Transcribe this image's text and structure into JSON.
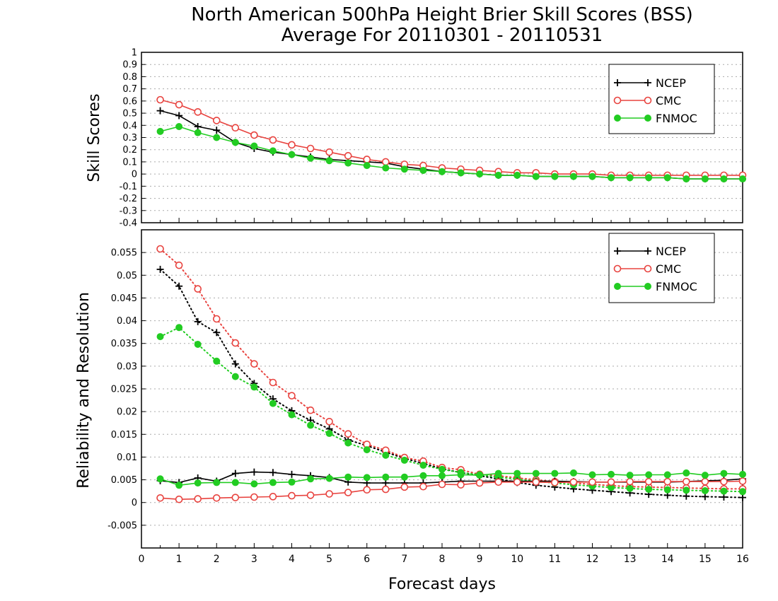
{
  "title_line1": "North American 500hPa Height Brier Skill Scores (BSS)",
  "title_line2": "Average For 20110301 - 20110531",
  "xlabel": "Forecast days",
  "colors": {
    "NCEP": "#000000",
    "CMC": "#e8433f",
    "FNMOC": "#22cc22"
  },
  "chart_data": [
    {
      "type": "line",
      "ylabel": "Skill Scores",
      "xlim": [
        0,
        16
      ],
      "ylim": [
        -0.4,
        1
      ],
      "yticks": [
        "-0.4",
        "-0.3",
        "-0.2",
        "-0.1",
        "0",
        "0.1",
        "0.2",
        "0.3",
        "0.4",
        "0.5",
        "0.6",
        "0.7",
        "0.8",
        "0.9",
        "1"
      ],
      "x": [
        0.5,
        1,
        1.5,
        2,
        2.5,
        3,
        3.5,
        4,
        4.5,
        5,
        5.5,
        6,
        6.5,
        7,
        7.5,
        8,
        8.5,
        9,
        9.5,
        10,
        10.5,
        11,
        11.5,
        12,
        12.5,
        13,
        13.5,
        14,
        14.5,
        15,
        15.5,
        16
      ],
      "legend": [
        "NCEP",
        "CMC",
        "FNMOC"
      ],
      "series": [
        {
          "name": "NCEP",
          "marker": "plus",
          "dotted": false,
          "values": [
            0.52,
            0.48,
            0.39,
            0.36,
            0.26,
            0.21,
            0.18,
            0.16,
            0.14,
            0.12,
            0.11,
            0.1,
            0.09,
            0.06,
            0.04,
            0.02,
            0.01,
            0,
            -0.01,
            -0.01,
            -0.02,
            -0.02,
            -0.02,
            -0.02,
            -0.03,
            -0.03,
            -0.03,
            -0.03,
            -0.04,
            -0.04,
            -0.04,
            -0.04
          ]
        },
        {
          "name": "CMC",
          "marker": "circle",
          "dotted": false,
          "values": [
            0.61,
            0.57,
            0.51,
            0.44,
            0.38,
            0.32,
            0.28,
            0.24,
            0.21,
            0.18,
            0.15,
            0.12,
            0.1,
            0.08,
            0.07,
            0.05,
            0.04,
            0.03,
            0.02,
            0.01,
            0.01,
            0,
            0,
            0,
            -0.01,
            -0.01,
            -0.01,
            -0.01,
            -0.01,
            -0.01,
            -0.01,
            -0.01
          ]
        },
        {
          "name": "FNMOC",
          "marker": "dot",
          "dotted": false,
          "values": [
            0.35,
            0.39,
            0.34,
            0.3,
            0.26,
            0.23,
            0.19,
            0.16,
            0.13,
            0.11,
            0.09,
            0.07,
            0.05,
            0.04,
            0.03,
            0.02,
            0.01,
            0,
            -0.01,
            -0.01,
            -0.02,
            -0.02,
            -0.02,
            -0.02,
            -0.03,
            -0.03,
            -0.03,
            -0.03,
            -0.04,
            -0.04,
            -0.04,
            -0.04
          ]
        }
      ]
    },
    {
      "type": "line",
      "ylabel": "Reliability and Resolution",
      "xlim": [
        0,
        16
      ],
      "ylim": [
        -0.01,
        0.06
      ],
      "yticks": [
        "-0.005",
        "0",
        "0.005",
        "0.01",
        "0.015",
        "0.02",
        "0.025",
        "0.03",
        "0.035",
        "0.04",
        "0.045",
        "0.05",
        "0.055"
      ],
      "xticks": [
        "0",
        "1",
        "2",
        "3",
        "4",
        "5",
        "6",
        "7",
        "8",
        "9",
        "10",
        "11",
        "12",
        "13",
        "14",
        "15",
        "16"
      ],
      "x": [
        0.5,
        1,
        1.5,
        2,
        2.5,
        3,
        3.5,
        4,
        4.5,
        5,
        5.5,
        6,
        6.5,
        7,
        7.5,
        8,
        8.5,
        9,
        9.5,
        10,
        10.5,
        11,
        11.5,
        12,
        12.5,
        13,
        13.5,
        14,
        14.5,
        15,
        15.5,
        16
      ],
      "legend": [
        "NCEP",
        "CMC",
        "FNMOC"
      ],
      "series": [
        {
          "name": "NCEP",
          "marker": "plus",
          "dotted": true,
          "values": [
            0.0513,
            0.0476,
            0.0398,
            0.0374,
            0.0305,
            0.0262,
            0.0228,
            0.0202,
            0.0181,
            0.0162,
            0.0138,
            0.0125,
            0.0111,
            0.0097,
            0.0086,
            0.0074,
            0.0066,
            0.0059,
            0.0052,
            0.0044,
            0.0038,
            0.0034,
            0.003,
            0.0027,
            0.0024,
            0.0021,
            0.0018,
            0.0016,
            0.0014,
            0.0013,
            0.0012,
            0.0011
          ]
        },
        {
          "name": "CMC",
          "marker": "circle",
          "dotted": true,
          "values": [
            0.0558,
            0.0522,
            0.047,
            0.0404,
            0.0351,
            0.0305,
            0.0264,
            0.0235,
            0.0203,
            0.0178,
            0.0151,
            0.0128,
            0.0115,
            0.0099,
            0.0091,
            0.0077,
            0.0072,
            0.0062,
            0.0059,
            0.0054,
            0.005,
            0.0046,
            0.0043,
            0.004,
            0.0037,
            0.0035,
            0.0034,
            0.0033,
            0.0032,
            0.0031,
            0.003,
            0.003
          ]
        },
        {
          "name": "FNMOC",
          "marker": "dot",
          "dotted": true,
          "values": [
            0.0365,
            0.0385,
            0.0348,
            0.0311,
            0.0277,
            0.0254,
            0.0218,
            0.0193,
            0.017,
            0.0152,
            0.0131,
            0.0116,
            0.0104,
            0.0093,
            0.0082,
            0.0073,
            0.0066,
            0.0061,
            0.0056,
            0.0051,
            0.0047,
            0.0043,
            0.0039,
            0.0036,
            0.0033,
            0.0031,
            0.0029,
            0.0028,
            0.0027,
            0.0026,
            0.0025,
            0.0024
          ]
        },
        {
          "name": "NCEP",
          "marker": "plus",
          "dotted": false,
          "values": [
            0.0048,
            0.0044,
            0.0054,
            0.0047,
            0.0064,
            0.0067,
            0.0066,
            0.0062,
            0.0059,
            0.0055,
            0.0045,
            0.0043,
            0.0043,
            0.0043,
            0.0043,
            0.0045,
            0.0047,
            0.0047,
            0.0047,
            0.0047,
            0.0047,
            0.0047,
            0.0046,
            0.0045,
            0.0045,
            0.0045,
            0.0045,
            0.0045,
            0.0046,
            0.0048,
            0.0049,
            0.0052
          ]
        },
        {
          "name": "CMC",
          "marker": "circle",
          "dotted": false,
          "values": [
            0.001,
            0.0007,
            0.0008,
            0.001,
            0.0011,
            0.0012,
            0.0013,
            0.0015,
            0.0016,
            0.0019,
            0.0022,
            0.0028,
            0.0029,
            0.0034,
            0.0035,
            0.004,
            0.0039,
            0.0043,
            0.0045,
            0.0045,
            0.0045,
            0.0044,
            0.0045,
            0.0045,
            0.0045,
            0.0046,
            0.0046,
            0.0046,
            0.0046,
            0.0046,
            0.0046,
            0.0047
          ]
        },
        {
          "name": "FNMOC",
          "marker": "dot",
          "dotted": false,
          "values": [
            0.0052,
            0.0038,
            0.0043,
            0.0044,
            0.0044,
            0.0041,
            0.0044,
            0.0045,
            0.0052,
            0.0053,
            0.0056,
            0.0055,
            0.0056,
            0.0056,
            0.0059,
            0.0059,
            0.0061,
            0.006,
            0.0064,
            0.0064,
            0.0064,
            0.0064,
            0.0065,
            0.0061,
            0.0062,
            0.006,
            0.0061,
            0.0061,
            0.0065,
            0.006,
            0.0064,
            0.0062
          ]
        }
      ]
    }
  ]
}
